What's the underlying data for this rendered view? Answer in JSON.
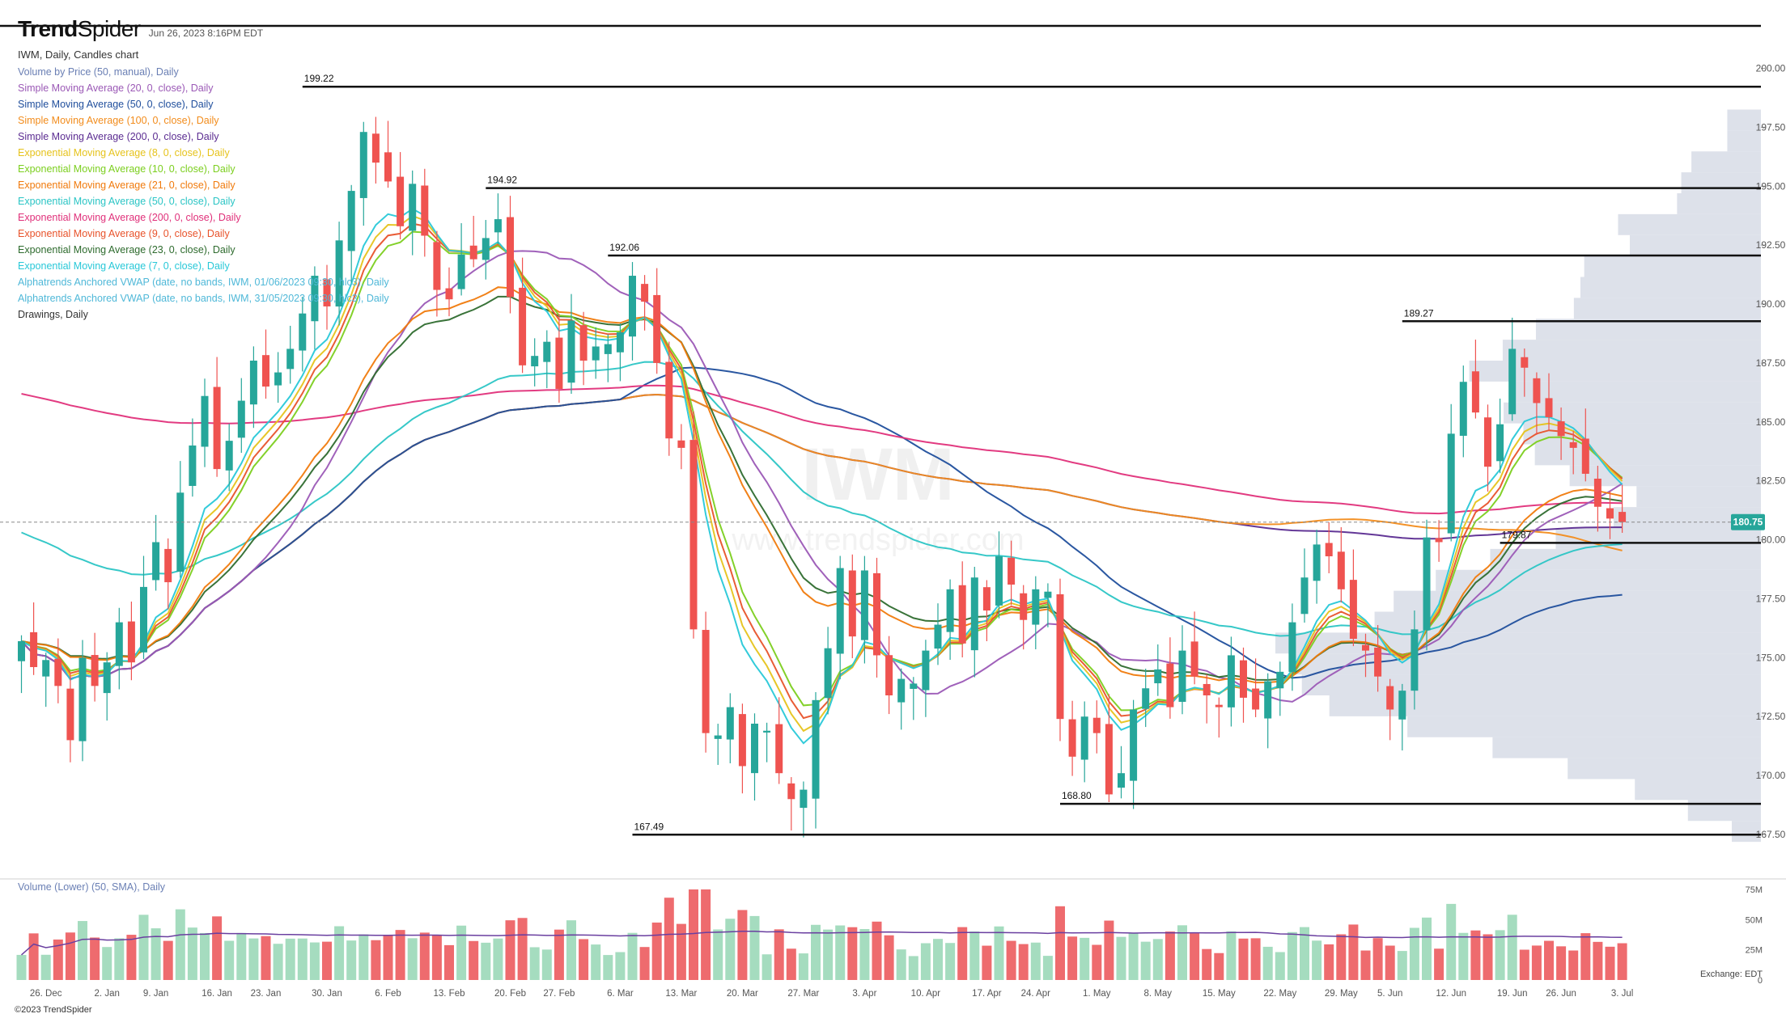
{
  "header": {
    "brand_main": "Trend",
    "brand_light": "Spider",
    "timestamp": "Jun 26, 2023 8:16PM EDT",
    "chart_title": "IWM, Daily, Candles chart"
  },
  "watermark": {
    "symbol": "IWM",
    "sub": "www.trendspider.com"
  },
  "indicators": [
    {
      "label": "Volume by Price (50, manual), Daily",
      "color": "#6a7fb4"
    },
    {
      "label": "Simple Moving Average (20, 0, close), Daily",
      "color": "#9b59b6"
    },
    {
      "label": "Simple Moving Average (50, 0, close), Daily",
      "color": "#1f4e9c"
    },
    {
      "label": "Simple Moving Average (100, 0, close), Daily",
      "color": "#f28c1c"
    },
    {
      "label": "Simple Moving Average (200, 0, close), Daily",
      "color": "#5b2c91"
    },
    {
      "label": "Exponential Moving Average (8, 0, close), Daily",
      "color": "#e6c31c"
    },
    {
      "label": "Exponential Moving Average (10, 0, close), Daily",
      "color": "#7ccf1f"
    },
    {
      "label": "Exponential Moving Average (21, 0, close), Daily",
      "color": "#f07a0c"
    },
    {
      "label": "Exponential Moving Average (50, 0, close), Daily",
      "color": "#2bc5c5"
    },
    {
      "label": "Exponential Moving Average (200, 0, close), Daily",
      "color": "#e0307a"
    },
    {
      "label": "Exponential Moving Average (9, 0, close), Daily",
      "color": "#e8532b"
    },
    {
      "label": "Exponential Moving Average (23, 0, close), Daily",
      "color": "#2e6b2e"
    },
    {
      "label": "Exponential Moving Average (7, 0, close), Daily",
      "color": "#28c8d8"
    },
    {
      "label": "Alphatrends Anchored VWAP (date, no bands, IWM, 01/06/2023 09:30, hlc3), Daily",
      "color": "#4fb8d8"
    },
    {
      "label": "Alphatrends Anchored VWAP (date, no bands, IWM, 31/05/2023 09:30, hlc3), Daily",
      "color": "#4fb8d8"
    },
    {
      "label": "Drawings, Daily",
      "color": "#333333"
    }
  ],
  "volume_panel": {
    "label": "Volume (Lower) (50, SMA), Daily",
    "label_color": "#6a7fb4"
  },
  "price_badge": {
    "value": "180.75",
    "color": "#26a69a"
  },
  "exchange_label": "Exchange: EDT",
  "footer": "©2023 TrendSpider",
  "colors": {
    "up": "#26a69a",
    "down": "#ef5350",
    "up_vol": "#a5dcbf",
    "down_vol": "#ee6b6e",
    "vbp": "#d7dce6"
  },
  "chart_data": {
    "type": "candlestick",
    "symbol": "IWM",
    "timeframe": "Daily",
    "ylim": [
      166.3,
      201.8
    ],
    "y_ticks": [
      "167.50",
      "170.00",
      "172.50",
      "175.00",
      "177.50",
      "180.00",
      "182.50",
      "185.00",
      "187.50",
      "190.00",
      "192.50",
      "195.00",
      "197.50",
      "200.00"
    ],
    "x_ticks": [
      {
        "label": "26. Dec",
        "i": 2
      },
      {
        "label": "2. Jan",
        "i": 7
      },
      {
        "label": "9. Jan",
        "i": 11
      },
      {
        "label": "16. Jan",
        "i": 16
      },
      {
        "label": "23. Jan",
        "i": 20
      },
      {
        "label": "30. Jan",
        "i": 25
      },
      {
        "label": "6. Feb",
        "i": 30
      },
      {
        "label": "13. Feb",
        "i": 35
      },
      {
        "label": "20. Feb",
        "i": 40
      },
      {
        "label": "27. Feb",
        "i": 44
      },
      {
        "label": "6. Mar",
        "i": 49
      },
      {
        "label": "13. Mar",
        "i": 54
      },
      {
        "label": "20. Mar",
        "i": 59
      },
      {
        "label": "27. Mar",
        "i": 64
      },
      {
        "label": "3. Apr",
        "i": 69
      },
      {
        "label": "10. Apr",
        "i": 74
      },
      {
        "label": "17. Apr",
        "i": 79
      },
      {
        "label": "24. Apr",
        "i": 83
      },
      {
        "label": "1. May",
        "i": 88
      },
      {
        "label": "8. May",
        "i": 93
      },
      {
        "label": "15. May",
        "i": 98
      },
      {
        "label": "22. May",
        "i": 103
      },
      {
        "label": "29. May",
        "i": 108
      },
      {
        "label": "5. Jun",
        "i": 112
      },
      {
        "label": "12. Jun",
        "i": 117
      },
      {
        "label": "19. Jun",
        "i": 122
      },
      {
        "label": "26. Jun",
        "i": 126
      },
      {
        "label": "3. Jul",
        "i": 131
      }
    ],
    "closes": [
      175.7,
      174.6,
      174.9,
      173.8,
      171.5,
      175.0,
      173.8,
      174.8,
      176.5,
      174.8,
      178.0,
      179.9,
      178.2,
      182.0,
      184.0,
      186.1,
      183.0,
      184.2,
      185.9,
      187.6,
      186.5,
      187.1,
      188.1,
      189.6,
      191.2,
      189.9,
      192.7,
      194.8,
      197.3,
      196.0,
      195.2,
      193.3,
      195.1,
      192.9,
      190.6,
      190.2,
      192.1,
      191.9,
      192.8,
      193.6,
      190.3,
      187.4,
      187.8,
      188.4,
      186.4,
      189.3,
      187.6,
      188.2,
      188.3,
      188.8,
      191.2,
      190.1,
      187.5,
      184.3,
      183.9,
      176.2,
      171.8,
      171.7,
      172.9,
      170.4,
      172.2,
      171.9,
      170.1,
      169.0,
      169.4,
      173.2,
      175.4,
      178.8,
      175.9,
      178.7,
      175.1,
      173.4,
      174.1,
      173.9,
      175.3,
      176.4,
      177.9,
      175.6,
      178.4,
      177.0,
      179.3,
      178.1,
      176.6,
      177.9,
      177.8,
      172.4,
      170.8,
      172.5,
      171.8,
      169.2,
      170.1,
      172.8,
      173.7,
      174.5,
      172.9,
      175.3,
      174.2,
      173.4,
      172.9,
      175.1,
      173.3,
      172.8,
      174.0,
      174.4,
      176.5,
      178.4,
      179.8,
      179.3,
      177.9,
      175.8,
      175.3,
      174.2,
      172.8,
      173.6,
      176.2,
      180.1,
      179.9,
      184.5,
      186.7,
      185.4,
      183.1,
      184.9,
      188.1,
      187.3,
      185.8,
      185.2,
      184.4,
      183.9,
      182.8,
      181.4,
      180.9,
      180.75
    ],
    "volume_max": 75,
    "volume_ticks": [
      "75M",
      "50M",
      "25M",
      "0"
    ],
    "series": [
      {
        "name": "Simple Moving Average (200, 0, close), Daily"
      },
      {
        "name": "Simple Moving Average (100, 0, close), Daily"
      },
      {
        "name": "Simple Moving Average (50, 0, close), Daily"
      },
      {
        "name": "Exponential Moving Average (200, 0, close), Daily"
      },
      {
        "name": "Exponential Moving Average (50, 0, close), Daily"
      },
      {
        "name": "Simple Moving Average (20, 0, close), Daily"
      },
      {
        "name": "Exponential Moving Average (23, 0, close), Daily"
      },
      {
        "name": "Exponential Moving Average (21, 0, close), Daily"
      },
      {
        "name": "Exponential Moving Average (10, 0, close), Daily"
      },
      {
        "name": "Exponential Moving Average (9, 0, close), Daily"
      },
      {
        "name": "Exponential Moving Average (8, 0, close), Daily"
      },
      {
        "name": "Exponential Moving Average (7, 0, close), Daily"
      }
    ],
    "levels": [
      {
        "label": "",
        "value": 201.8,
        "from_i": -2
      },
      {
        "label": "199.22",
        "value": 199.22,
        "from_i": 23
      },
      {
        "label": "194.92",
        "value": 194.92,
        "from_i": 38
      },
      {
        "label": "192.06",
        "value": 192.06,
        "from_i": 48
      },
      {
        "label": "189.27",
        "value": 189.27,
        "from_i": 113
      },
      {
        "label": "179.87",
        "value": 179.87,
        "from_i": 121
      },
      {
        "label": "168.80",
        "value": 168.8,
        "from_i": 85
      },
      {
        "label": "167.49",
        "value": 167.49,
        "from_i": 50
      }
    ],
    "current_price": 180.75
  }
}
